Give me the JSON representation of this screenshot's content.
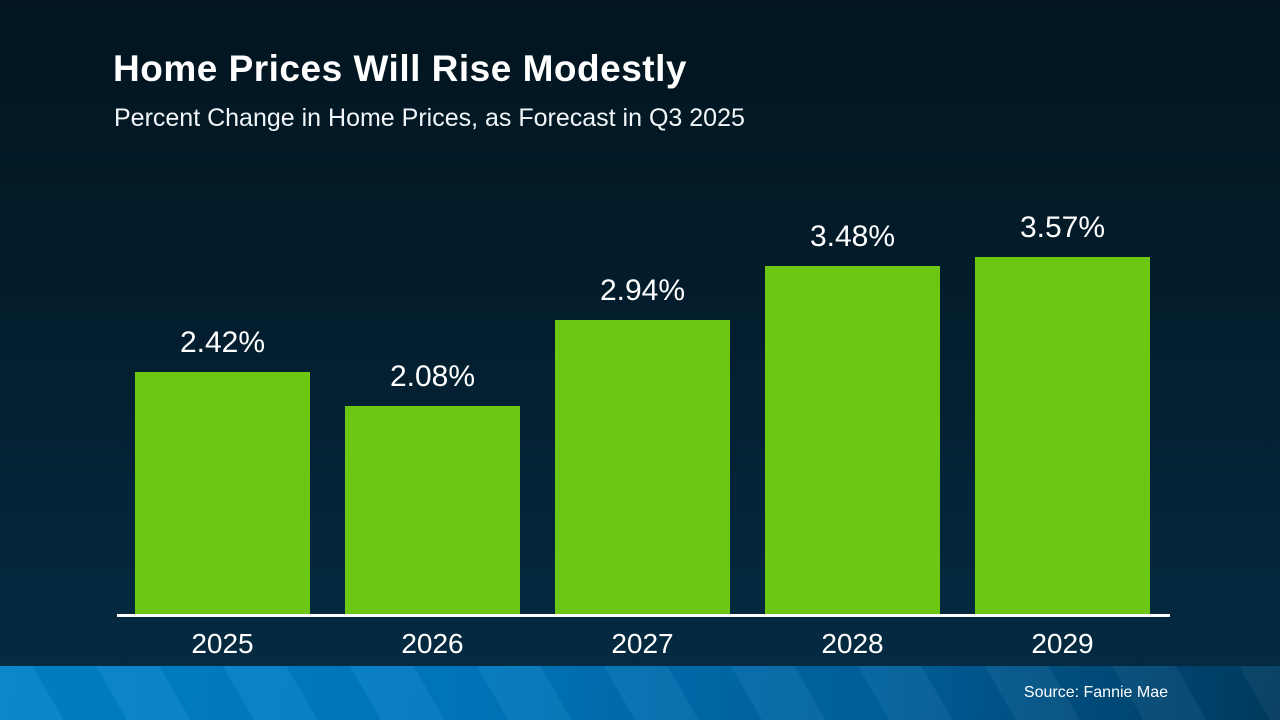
{
  "slide": {
    "title": "Home Prices Will Rise Modestly",
    "subtitle": "Percent Change in Home Prices, as Forecast in Q3 2025",
    "source": "Source: Fannie Mae"
  },
  "colors": {
    "background_top": "#021520",
    "background_bottom": "#052c45",
    "bar_green": "#6cc713",
    "axis_line": "#ffffff",
    "text": "#ffffff",
    "footer_gradient_left": "#0082c8",
    "footer_gradient_right": "#003a5e"
  },
  "chart_data": {
    "type": "bar",
    "title": "Home Prices Will Rise Modestly",
    "subtitle": "Percent Change in Home Prices, as Forecast in Q3 2025",
    "categories": [
      "2025",
      "2026",
      "2027",
      "2028",
      "2029"
    ],
    "values": [
      2.42,
      2.08,
      2.94,
      3.48,
      3.57
    ],
    "value_labels": [
      "2.42%",
      "2.08%",
      "2.94%",
      "3.48%",
      "3.57%"
    ],
    "xlabel": "",
    "ylabel": "",
    "ylim": [
      0,
      3.6
    ],
    "grid": false,
    "legend": "none",
    "bar_color": "#6cc713",
    "source": "Source: Fannie Mae"
  }
}
